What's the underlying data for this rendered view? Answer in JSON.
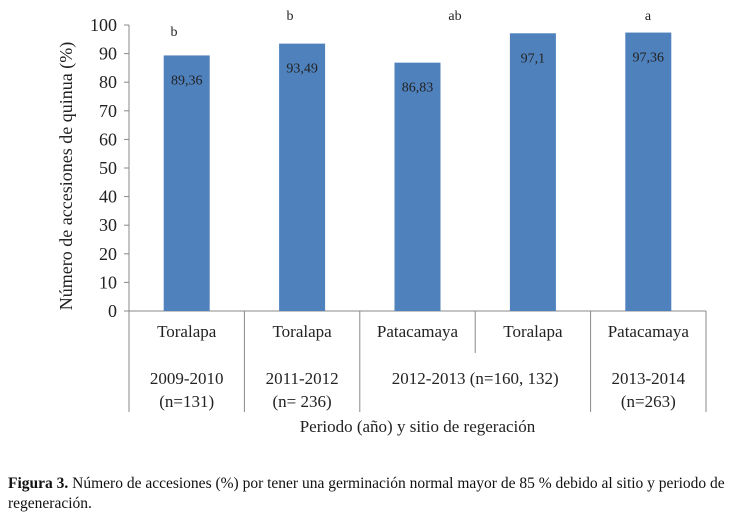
{
  "chart_data": {
    "type": "bar",
    "title": "",
    "ylabel": "Número de accesiones de quinua (%)",
    "xlabel": "Periodo (año) y sitio de regeración",
    "ylim": [
      0,
      100
    ],
    "yticks": [
      "0",
      "10",
      "20",
      "30",
      "40",
      "50",
      "60",
      "70",
      "80",
      "90",
      "100"
    ],
    "grid": false,
    "bar_color": "#4f81bd",
    "categories": [
      "Toralapa",
      "Toralapa",
      "Patacamaya",
      "Toralapa",
      "Patacamaya"
    ],
    "values": [
      89.36,
      93.49,
      86.83,
      97.1,
      97.36
    ],
    "data_labels": [
      "89,36",
      "93,49",
      "86,83",
      "97,1",
      "97,36"
    ],
    "significance_letters": [
      "b",
      "b",
      "ab",
      "",
      "a"
    ],
    "groups": [
      {
        "period": "2009-2010",
        "n": "(n=131)",
        "span": 1
      },
      {
        "period": "2011-2012",
        "n": "(n= 236)",
        "span": 1
      },
      {
        "period": "2012-2013 (n=160, 132)",
        "n": "",
        "span": 2
      },
      {
        "period": "2013-2014",
        "n": "(n=263)",
        "span": 1
      }
    ]
  },
  "caption": {
    "label": "Figura 3.",
    "text": " Número de accesiones (%) por tener una germinación normal mayor de 85 % debido al sitio y periodo de regeneración."
  }
}
